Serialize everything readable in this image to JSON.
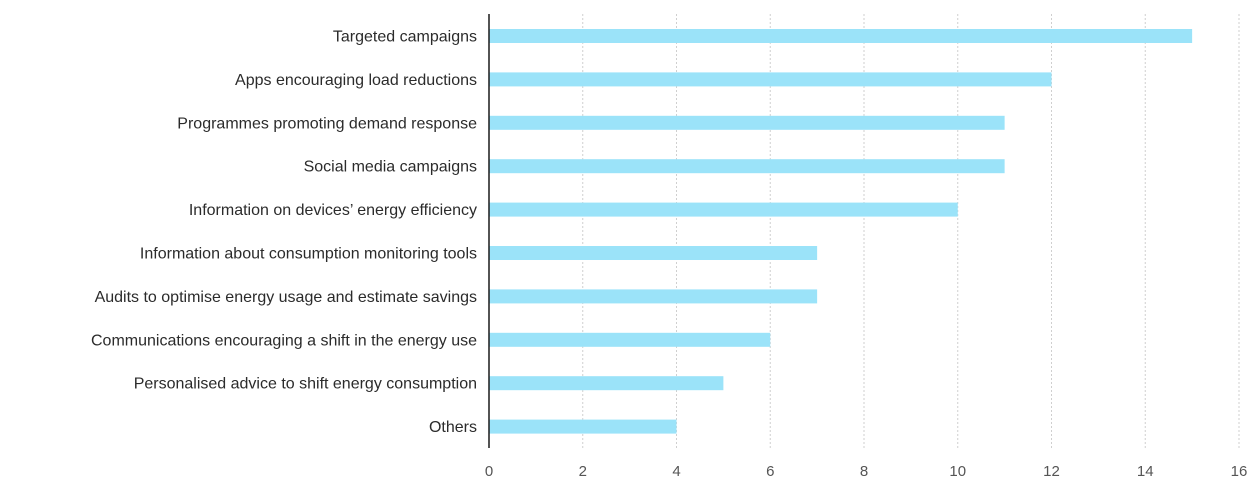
{
  "chart_data": {
    "type": "bar",
    "orientation": "horizontal",
    "categories": [
      "Targeted campaigns",
      "Apps encouraging load reductions",
      "Programmes promoting demand response",
      "Social media campaigns",
      "Information on devices’ energy efficiency",
      "Information about consumption monitoring tools",
      "Audits to optimise energy usage and estimate savings",
      "Communications encouraging a shift in the energy use",
      "Personalised advice to shift energy consumption",
      "Others"
    ],
    "values": [
      15,
      12,
      11,
      11,
      10,
      7,
      7,
      6,
      5,
      4
    ],
    "xlim": [
      0,
      16
    ],
    "xticks": [
      "0",
      "2",
      "4",
      "6",
      "8",
      "10",
      "12",
      "14",
      "16"
    ],
    "grid": "vertical dotted",
    "bar_color": "#9be3f9",
    "title": "",
    "xlabel": "",
    "ylabel": ""
  }
}
